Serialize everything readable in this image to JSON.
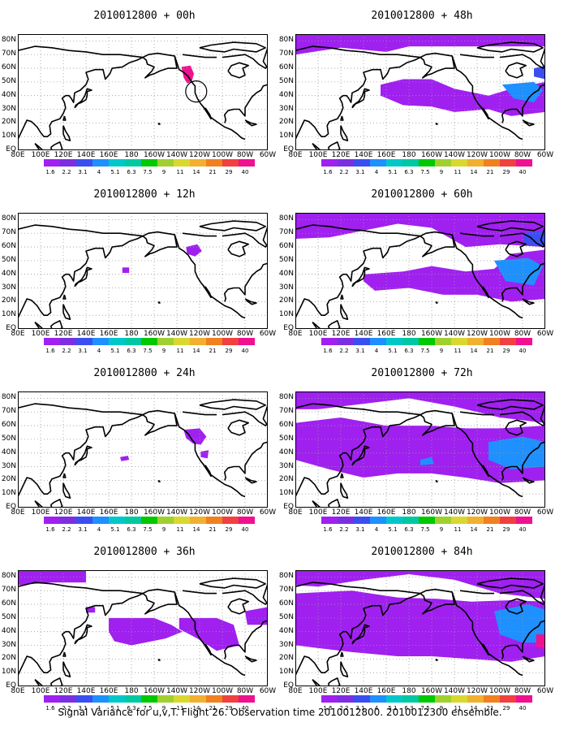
{
  "panels": [
    {
      "title": "2010012800 + 00h",
      "signal": 0,
      "circle": true
    },
    {
      "title": "2010012800 + 12h",
      "signal": 1,
      "circle": false
    },
    {
      "title": "2010012800 + 24h",
      "signal": 2,
      "circle": false
    },
    {
      "title": "2010012800 + 36h",
      "signal": 3,
      "circle": false
    },
    {
      "title": "2010012800 + 48h",
      "signal": 4,
      "circle": false
    },
    {
      "title": "2010012800 + 60h",
      "signal": 5,
      "circle": false
    },
    {
      "title": "2010012800 + 72h",
      "signal": 6,
      "circle": false
    },
    {
      "title": "2010012800 + 84h",
      "signal": 7,
      "circle": false
    }
  ],
  "lat_labels": [
    "80N",
    "70N",
    "60N",
    "50N",
    "40N",
    "30N",
    "20N",
    "10N",
    "EQ"
  ],
  "lon_labels": [
    "80E",
    "100E",
    "120E",
    "140E",
    "160E",
    "180",
    "160W",
    "140W",
    "120W",
    "100W",
    "80W",
    "60W"
  ],
  "colorbar": {
    "labels": [
      "1.6",
      "2.2",
      "3.1",
      "4",
      "5.1",
      "6.3",
      "7.5",
      "9",
      "11",
      "14",
      "21",
      "29",
      "40"
    ],
    "colors": [
      "#a020f0",
      "#7b2fe0",
      "#3b4ff0",
      "#1e90ff",
      "#00c8c8",
      "#00c8a0",
      "#00c800",
      "#a0d030",
      "#d8d830",
      "#f0b030",
      "#f08020",
      "#f04040",
      "#f01090"
    ]
  },
  "caption": "Signal Variance for u,v,T. Flight 26. Observation time 2010012800. 2010012300 ensemble."
}
